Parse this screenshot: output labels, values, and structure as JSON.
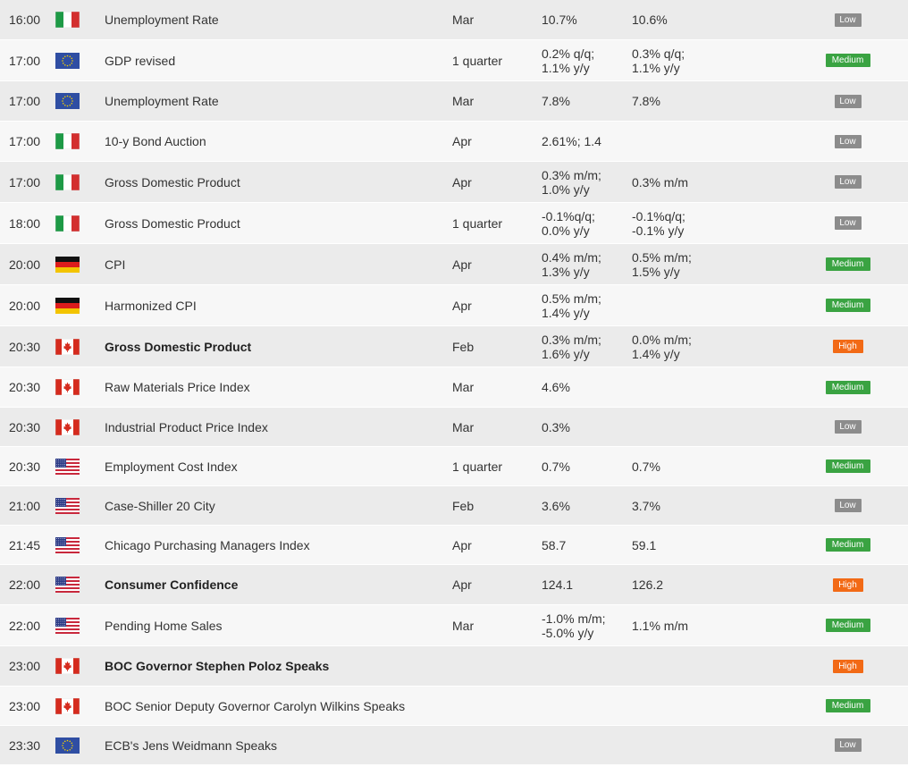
{
  "rows": [
    {
      "time": "16:00",
      "flag": "italy-flag-icon",
      "event": "Unemployment Rate",
      "bold": false,
      "period": "Mar",
      "actual": "10.7%",
      "forecast": "10.6%",
      "importance": "Low"
    },
    {
      "time": "17:00",
      "flag": "eu-flag-icon",
      "event": "GDP revised",
      "bold": false,
      "period": "1 quarter",
      "actual": "0.2% q/q;\n1.1% y/y",
      "forecast": "0.3% q/q;\n1.1% y/y",
      "importance": "Medium"
    },
    {
      "time": "17:00",
      "flag": "eu-flag-icon",
      "event": "Unemployment Rate",
      "bold": false,
      "period": "Mar",
      "actual": "7.8%",
      "forecast": "7.8%",
      "importance": "Low"
    },
    {
      "time": "17:00",
      "flag": "italy-flag-icon",
      "event": "10-y Bond Auction",
      "bold": false,
      "period": "Apr",
      "actual": "2.61%; 1.4",
      "forecast": "",
      "importance": "Low"
    },
    {
      "time": "17:00",
      "flag": "italy-flag-icon",
      "event": "Gross Domestic Product",
      "bold": false,
      "period": "Apr",
      "actual": "0.3% m/m;\n1.0% y/y",
      "forecast": "0.3% m/m",
      "importance": "Low"
    },
    {
      "time": "18:00",
      "flag": "italy-flag-icon",
      "event": "Gross Domestic Product",
      "bold": false,
      "period": "1 quarter",
      "actual": "-0.1%q/q;\n0.0% y/y",
      "forecast": "-0.1%q/q;\n-0.1% y/y",
      "importance": "Low"
    },
    {
      "time": "20:00",
      "flag": "germany-flag-icon",
      "event": "CPI",
      "bold": false,
      "period": "Apr",
      "actual": "0.4% m/m;\n1.3% y/y",
      "forecast": "0.5% m/m;\n1.5% y/y",
      "importance": "Medium"
    },
    {
      "time": "20:00",
      "flag": "germany-flag-icon",
      "event": "Harmonized CPI",
      "bold": false,
      "period": "Apr",
      "actual": "0.5% m/m;\n1.4% y/y",
      "forecast": "",
      "importance": "Medium"
    },
    {
      "time": "20:30",
      "flag": "canada-flag-icon",
      "event": "Gross Domestic Product",
      "bold": true,
      "period": "Feb",
      "actual": "0.3% m/m;\n1.6% y/y",
      "forecast": "0.0% m/m;\n1.4% y/y",
      "importance": "High"
    },
    {
      "time": "20:30",
      "flag": "canada-flag-icon",
      "event": "Raw Materials Price Index",
      "bold": false,
      "period": "Mar",
      "actual": "4.6%",
      "forecast": "",
      "importance": "Medium"
    },
    {
      "time": "20:30",
      "flag": "canada-flag-icon",
      "event": "Industrial Product Price Index",
      "bold": false,
      "period": "Mar",
      "actual": "0.3%",
      "forecast": "",
      "importance": "Low"
    },
    {
      "time": "20:30",
      "flag": "usa-flag-icon",
      "event": "Employment Cost Index",
      "bold": false,
      "period": "1 quarter",
      "actual": "0.7%",
      "forecast": "0.7%",
      "importance": "Medium"
    },
    {
      "time": "21:00",
      "flag": "usa-flag-icon",
      "event": "Case-Shiller 20 City",
      "bold": false,
      "period": "Feb",
      "actual": "3.6%",
      "forecast": "3.7%",
      "importance": "Low"
    },
    {
      "time": "21:45",
      "flag": "usa-flag-icon",
      "event": "Chicago Purchasing Managers Index",
      "bold": false,
      "period": "Apr",
      "actual": "58.7",
      "forecast": "59.1",
      "importance": "Medium"
    },
    {
      "time": "22:00",
      "flag": "usa-flag-icon",
      "event": "Consumer Confidence",
      "bold": true,
      "period": "Apr",
      "actual": "124.1",
      "forecast": "126.2",
      "importance": "High"
    },
    {
      "time": "22:00",
      "flag": "usa-flag-icon",
      "event": "Pending Home Sales",
      "bold": false,
      "period": "Mar",
      "actual": "-1.0% m/m;\n-5.0% y/y",
      "forecast": "1.1% m/m",
      "importance": "Medium"
    },
    {
      "time": "23:00",
      "flag": "canada-flag-icon",
      "event": "BOC Governor Stephen Poloz Speaks",
      "bold": true,
      "period": "",
      "actual": "",
      "forecast": "",
      "importance": "High"
    },
    {
      "time": "23:00",
      "flag": "canada-flag-icon",
      "event": "BOC Senior Deputy Governor Carolyn Wilkins Speaks",
      "bold": false,
      "period": "",
      "actual": "",
      "forecast": "",
      "importance": "Medium"
    },
    {
      "time": "23:30",
      "flag": "eu-flag-icon",
      "event": "ECB's Jens Weidmann Speaks",
      "bold": false,
      "period": "",
      "actual": "",
      "forecast": "",
      "importance": "Low"
    }
  ],
  "colors": {
    "low": "#8c8c8c",
    "medium": "#3aa342",
    "high": "#f26a16",
    "row_odd": "#ebebeb",
    "row_even": "#f7f7f7"
  }
}
